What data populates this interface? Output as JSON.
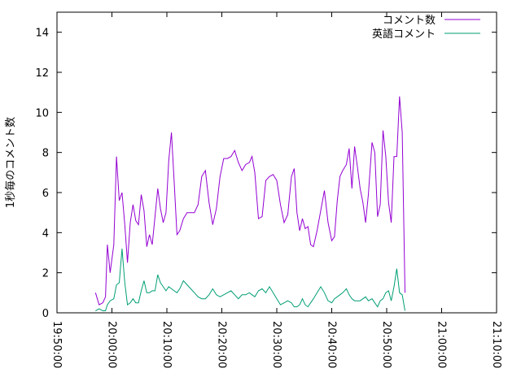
{
  "chart_data": {
    "type": "line",
    "ylabel": "1秒毎のコメント数",
    "ylim": [
      0,
      15
    ],
    "y_ticks": [
      "0",
      "2",
      "4",
      "6",
      "8",
      "10",
      "12",
      "14"
    ],
    "x_ticks": [
      "19:50:00",
      "20:00:00",
      "20:10:00",
      "20:20:00",
      "20:30:00",
      "20:40:00",
      "20:50:00",
      "21:00:00",
      "21:10:00"
    ],
    "xlim": [
      "19:50:00",
      "21:10:00"
    ],
    "grid": false,
    "legend_position": "top-right",
    "x_label_rotation": "vertical",
    "series": [
      {
        "name": "コメント数",
        "color": "#9400d3",
        "points": [
          [
            "19:57:00",
            1.0
          ],
          [
            "19:57:40",
            0.4
          ],
          [
            "19:58:20",
            0.5
          ],
          [
            "19:58:50",
            0.8
          ],
          [
            "19:59:10",
            3.4
          ],
          [
            "19:59:40",
            2.0
          ],
          [
            "20:00:20",
            3.4
          ],
          [
            "20:00:50",
            7.8
          ],
          [
            "20:01:20",
            5.6
          ],
          [
            "20:01:50",
            6.0
          ],
          [
            "20:02:20",
            4.4
          ],
          [
            "20:02:50",
            2.5
          ],
          [
            "20:03:20",
            4.5
          ],
          [
            "20:03:50",
            5.4
          ],
          [
            "20:04:20",
            4.6
          ],
          [
            "20:04:50",
            4.4
          ],
          [
            "20:05:20",
            5.9
          ],
          [
            "20:05:50",
            5.1
          ],
          [
            "20:06:20",
            3.3
          ],
          [
            "20:06:50",
            3.9
          ],
          [
            "20:07:20",
            3.4
          ],
          [
            "20:07:50",
            4.8
          ],
          [
            "20:08:20",
            6.2
          ],
          [
            "20:08:50",
            5.2
          ],
          [
            "20:09:20",
            4.5
          ],
          [
            "20:09:50",
            5.0
          ],
          [
            "20:10:20",
            7.6
          ],
          [
            "20:10:50",
            9.0
          ],
          [
            "20:11:20",
            6.5
          ],
          [
            "20:11:50",
            3.9
          ],
          [
            "20:12:20",
            4.1
          ],
          [
            "20:13:00",
            4.7
          ],
          [
            "20:13:40",
            5.0
          ],
          [
            "20:14:20",
            5.0
          ],
          [
            "20:15:00",
            5.0
          ],
          [
            "20:15:40",
            5.4
          ],
          [
            "20:16:20",
            6.8
          ],
          [
            "20:17:00",
            7.1
          ],
          [
            "20:17:40",
            5.5
          ],
          [
            "20:18:20",
            4.4
          ],
          [
            "20:19:00",
            5.2
          ],
          [
            "20:19:40",
            6.8
          ],
          [
            "20:20:20",
            7.7
          ],
          [
            "20:21:00",
            7.7
          ],
          [
            "20:21:40",
            7.8
          ],
          [
            "20:22:20",
            8.1
          ],
          [
            "20:23:00",
            7.5
          ],
          [
            "20:23:40",
            7.1
          ],
          [
            "20:24:20",
            7.4
          ],
          [
            "20:25:00",
            7.5
          ],
          [
            "20:25:30",
            7.8
          ],
          [
            "20:26:00",
            7.0
          ],
          [
            "20:26:40",
            4.7
          ],
          [
            "20:27:20",
            4.8
          ],
          [
            "20:28:00",
            6.6
          ],
          [
            "20:28:40",
            6.8
          ],
          [
            "20:29:20",
            6.9
          ],
          [
            "20:30:00",
            6.6
          ],
          [
            "20:30:40",
            5.4
          ],
          [
            "20:31:20",
            4.5
          ],
          [
            "20:32:00",
            4.9
          ],
          [
            "20:32:40",
            6.8
          ],
          [
            "20:33:10",
            7.2
          ],
          [
            "20:33:40",
            5.0
          ],
          [
            "20:34:10",
            4.1
          ],
          [
            "20:34:40",
            4.7
          ],
          [
            "20:35:10",
            4.2
          ],
          [
            "20:35:40",
            4.3
          ],
          [
            "20:36:10",
            3.4
          ],
          [
            "20:36:40",
            3.3
          ],
          [
            "20:37:20",
            4.1
          ],
          [
            "20:38:00",
            5.1
          ],
          [
            "20:38:40",
            6.1
          ],
          [
            "20:39:20",
            4.5
          ],
          [
            "20:40:00",
            3.6
          ],
          [
            "20:40:30",
            3.8
          ],
          [
            "20:41:00",
            5.6
          ],
          [
            "20:41:30",
            6.8
          ],
          [
            "20:42:00",
            7.1
          ],
          [
            "20:42:40",
            7.4
          ],
          [
            "20:43:10",
            8.2
          ],
          [
            "20:43:40",
            6.2
          ],
          [
            "20:44:10",
            8.3
          ],
          [
            "20:44:40",
            7.3
          ],
          [
            "20:45:10",
            6.2
          ],
          [
            "20:45:40",
            5.5
          ],
          [
            "20:46:10",
            4.5
          ],
          [
            "20:46:40",
            5.9
          ],
          [
            "20:47:20",
            8.5
          ],
          [
            "20:47:50",
            8.0
          ],
          [
            "20:48:20",
            4.8
          ],
          [
            "20:48:50",
            5.4
          ],
          [
            "20:49:20",
            9.1
          ],
          [
            "20:49:50",
            7.8
          ],
          [
            "20:50:20",
            5.5
          ],
          [
            "20:50:50",
            4.5
          ],
          [
            "20:51:20",
            7.8
          ],
          [
            "20:51:50",
            7.8
          ],
          [
            "20:52:20",
            10.8
          ],
          [
            "20:52:50",
            9.0
          ],
          [
            "20:53:20",
            1.0
          ]
        ]
      },
      {
        "name": "英語コメント",
        "color": "#009e73",
        "points": [
          [
            "19:57:00",
            0.1
          ],
          [
            "19:57:40",
            0.2
          ],
          [
            "19:58:20",
            0.1
          ],
          [
            "19:58:50",
            0.1
          ],
          [
            "19:59:10",
            0.4
          ],
          [
            "19:59:40",
            0.6
          ],
          [
            "20:00:20",
            0.7
          ],
          [
            "20:00:50",
            1.4
          ],
          [
            "20:01:20",
            1.5
          ],
          [
            "20:01:50",
            3.2
          ],
          [
            "20:02:20",
            1.5
          ],
          [
            "20:02:50",
            0.4
          ],
          [
            "20:03:20",
            0.5
          ],
          [
            "20:03:50",
            0.7
          ],
          [
            "20:04:20",
            0.5
          ],
          [
            "20:04:50",
            0.5
          ],
          [
            "20:05:20",
            1.1
          ],
          [
            "20:05:50",
            1.6
          ],
          [
            "20:06:20",
            1.0
          ],
          [
            "20:06:50",
            1.0
          ],
          [
            "20:07:20",
            1.1
          ],
          [
            "20:07:50",
            1.1
          ],
          [
            "20:08:20",
            1.9
          ],
          [
            "20:08:50",
            1.5
          ],
          [
            "20:09:20",
            1.3
          ],
          [
            "20:09:50",
            1.1
          ],
          [
            "20:10:20",
            1.3
          ],
          [
            "20:10:50",
            1.2
          ],
          [
            "20:11:20",
            1.1
          ],
          [
            "20:11:50",
            1.0
          ],
          [
            "20:12:20",
            1.2
          ],
          [
            "20:13:00",
            1.6
          ],
          [
            "20:13:40",
            1.4
          ],
          [
            "20:14:20",
            1.2
          ],
          [
            "20:15:00",
            1.0
          ],
          [
            "20:15:40",
            0.8
          ],
          [
            "20:16:20",
            0.7
          ],
          [
            "20:17:00",
            0.7
          ],
          [
            "20:17:40",
            0.9
          ],
          [
            "20:18:20",
            1.2
          ],
          [
            "20:19:00",
            0.9
          ],
          [
            "20:19:40",
            0.8
          ],
          [
            "20:20:20",
            0.9
          ],
          [
            "20:21:00",
            1.0
          ],
          [
            "20:21:40",
            1.1
          ],
          [
            "20:22:20",
            0.9
          ],
          [
            "20:23:00",
            0.7
          ],
          [
            "20:23:40",
            0.9
          ],
          [
            "20:24:20",
            0.9
          ],
          [
            "20:25:00",
            1.0
          ],
          [
            "20:25:30",
            0.9
          ],
          [
            "20:26:00",
            0.8
          ],
          [
            "20:26:40",
            1.1
          ],
          [
            "20:27:20",
            1.2
          ],
          [
            "20:28:00",
            1.0
          ],
          [
            "20:28:40",
            1.3
          ],
          [
            "20:29:20",
            1.0
          ],
          [
            "20:30:00",
            0.7
          ],
          [
            "20:30:40",
            0.4
          ],
          [
            "20:31:20",
            0.5
          ],
          [
            "20:32:00",
            0.6
          ],
          [
            "20:32:40",
            0.5
          ],
          [
            "20:33:10",
            0.3
          ],
          [
            "20:33:40",
            0.3
          ],
          [
            "20:34:10",
            0.4
          ],
          [
            "20:34:40",
            0.7
          ],
          [
            "20:35:10",
            0.4
          ],
          [
            "20:35:40",
            0.3
          ],
          [
            "20:36:10",
            0.5
          ],
          [
            "20:36:40",
            0.7
          ],
          [
            "20:37:20",
            1.0
          ],
          [
            "20:38:00",
            1.3
          ],
          [
            "20:38:40",
            1.0
          ],
          [
            "20:39:20",
            0.6
          ],
          [
            "20:40:00",
            0.5
          ],
          [
            "20:40:30",
            0.7
          ],
          [
            "20:41:00",
            0.8
          ],
          [
            "20:41:30",
            0.9
          ],
          [
            "20:42:00",
            1.0
          ],
          [
            "20:42:40",
            1.2
          ],
          [
            "20:43:10",
            0.9
          ],
          [
            "20:43:40",
            0.7
          ],
          [
            "20:44:10",
            0.6
          ],
          [
            "20:44:40",
            0.6
          ],
          [
            "20:45:10",
            0.6
          ],
          [
            "20:45:40",
            0.7
          ],
          [
            "20:46:10",
            0.8
          ],
          [
            "20:46:40",
            0.6
          ],
          [
            "20:47:20",
            0.7
          ],
          [
            "20:47:50",
            0.5
          ],
          [
            "20:48:20",
            0.3
          ],
          [
            "20:48:50",
            0.6
          ],
          [
            "20:49:20",
            0.7
          ],
          [
            "20:49:50",
            1.0
          ],
          [
            "20:50:20",
            1.1
          ],
          [
            "20:50:50",
            0.6
          ],
          [
            "20:51:20",
            1.3
          ],
          [
            "20:51:50",
            2.2
          ],
          [
            "20:52:20",
            1.0
          ],
          [
            "20:52:50",
            0.9
          ],
          [
            "20:53:20",
            0.1
          ]
        ]
      }
    ]
  }
}
